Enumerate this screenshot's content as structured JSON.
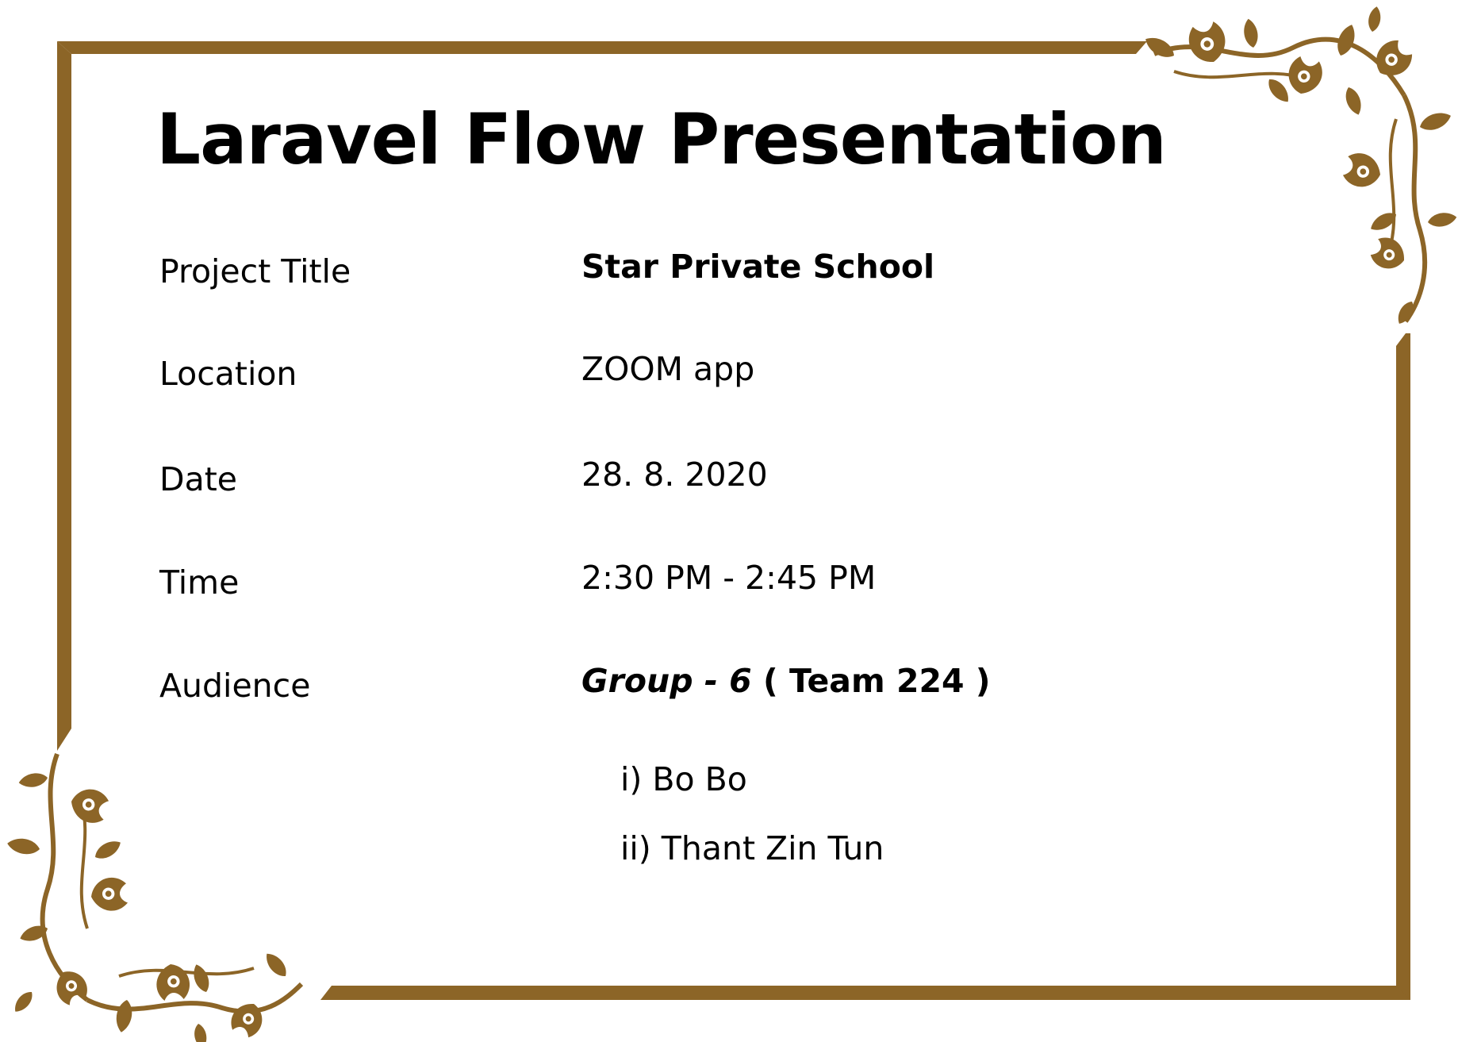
{
  "slide": {
    "title": "Laravel Flow Presentation"
  },
  "details": {
    "project_title": {
      "label": "Project Title",
      "value": "Star Private School"
    },
    "location": {
      "label": "Location",
      "value": "ZOOM app"
    },
    "date": {
      "label": "Date",
      "value": "28. 8. 2020"
    },
    "time": {
      "label": "Time",
      "value": "2:30 PM - 2:45 PM"
    },
    "audience": {
      "label": "Audience",
      "group": "Group - 6",
      "team": " ( Team 224 )",
      "members": [
        "i) Bo Bo",
        "ii) Thant Zin Tun"
      ]
    }
  },
  "colors": {
    "frame": "#8C6527",
    "text": "#000000",
    "background": "#FFFFFF"
  },
  "icons": {
    "top_right": "floral-corner-ornament-icon",
    "bottom_left": "floral-corner-ornament-icon"
  }
}
